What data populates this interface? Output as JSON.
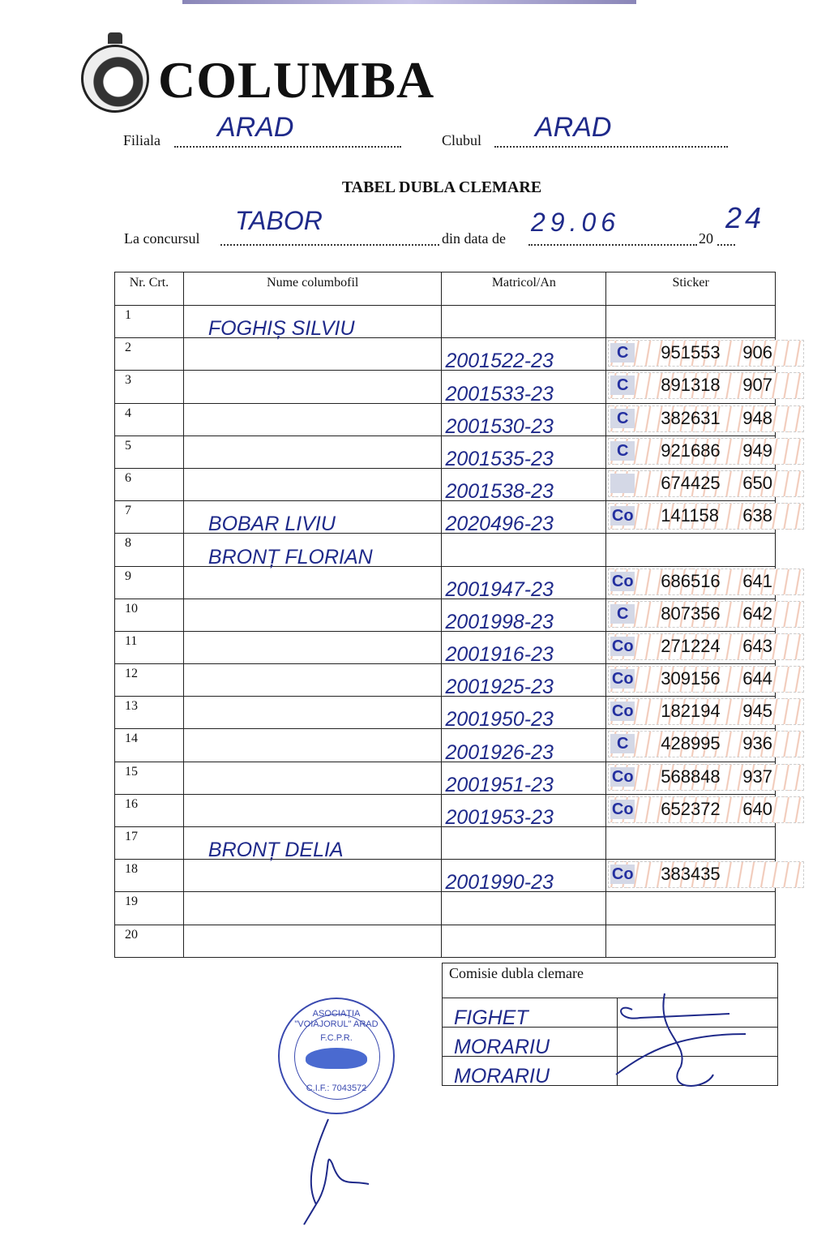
{
  "header": {
    "brand": "COLUMBA",
    "filiala_label": "Filiala",
    "filiala_value": "ARAD",
    "clubul_label": "Clubul",
    "clubul_value": "ARAD"
  },
  "title": "TABEL DUBLA CLEMARE",
  "contest": {
    "label": "La concursul",
    "value": "TABOR",
    "date_label": "din data de",
    "date_value": "29.06",
    "year_prefix": "20",
    "year_value": "24"
  },
  "table": {
    "columns": [
      "Nr. Crt.",
      "Nume columbofil",
      "Matricol/An",
      "Sticker"
    ],
    "rows": [
      {
        "nr": "1",
        "name": "FOGHIȘ SILVIU",
        "matricol": "",
        "sticker": null
      },
      {
        "nr": "2",
        "name": "",
        "matricol": "2001522-23",
        "sticker": {
          "prefix": "C",
          "number": "951553",
          "suffix": "906"
        }
      },
      {
        "nr": "3",
        "name": "",
        "matricol": "2001533-23",
        "sticker": {
          "prefix": "C",
          "number": "891318",
          "suffix": "907"
        }
      },
      {
        "nr": "4",
        "name": "",
        "matricol": "2001530-23",
        "sticker": {
          "prefix": "C",
          "number": "382631",
          "suffix": "948"
        }
      },
      {
        "nr": "5",
        "name": "",
        "matricol": "2001535-23",
        "sticker": {
          "prefix": "C",
          "number": "921686",
          "suffix": "949"
        }
      },
      {
        "nr": "6",
        "name": "",
        "matricol": "2001538-23",
        "sticker": {
          "prefix": "",
          "number": "674425",
          "suffix": "650"
        }
      },
      {
        "nr": "7",
        "name": "BOBAR LIVIU",
        "matricol": "2020496-23",
        "sticker": {
          "prefix": "Co",
          "number": "141158",
          "suffix": "638"
        }
      },
      {
        "nr": "8",
        "name": "BRONȚ FLORIAN",
        "matricol": "",
        "sticker": null
      },
      {
        "nr": "9",
        "name": "",
        "matricol": "2001947-23",
        "sticker": {
          "prefix": "Co",
          "number": "686516",
          "suffix": "641"
        }
      },
      {
        "nr": "10",
        "name": "",
        "matricol": "2001998-23",
        "sticker": {
          "prefix": "C",
          "number": "807356",
          "suffix": "642"
        }
      },
      {
        "nr": "11",
        "name": "",
        "matricol": "2001916-23",
        "sticker": {
          "prefix": "Co",
          "number": "271224",
          "suffix": "643"
        }
      },
      {
        "nr": "12",
        "name": "",
        "matricol": "2001925-23",
        "sticker": {
          "prefix": "Co",
          "number": "309156",
          "suffix": "644"
        }
      },
      {
        "nr": "13",
        "name": "",
        "matricol": "2001950-23",
        "sticker": {
          "prefix": "Co",
          "number": "182194",
          "suffix": "945"
        }
      },
      {
        "nr": "14",
        "name": "",
        "matricol": "2001926-23",
        "sticker": {
          "prefix": "C",
          "number": "428995",
          "suffix": "936"
        }
      },
      {
        "nr": "15",
        "name": "",
        "matricol": "2001951-23",
        "sticker": {
          "prefix": "Co",
          "number": "568848",
          "suffix": "937"
        }
      },
      {
        "nr": "16",
        "name": "",
        "matricol": "2001953-23",
        "sticker": {
          "prefix": "Co",
          "number": "652372",
          "suffix": "640"
        }
      },
      {
        "nr": "17",
        "name": "BRONȚ DELIA",
        "matricol": "",
        "sticker": null
      },
      {
        "nr": "18",
        "name": "",
        "matricol": "2001990-23",
        "sticker": {
          "prefix": "Co",
          "number": "383435",
          "suffix": ""
        }
      },
      {
        "nr": "19",
        "name": "",
        "matricol": "",
        "sticker": null
      },
      {
        "nr": "20",
        "name": "",
        "matricol": "",
        "sticker": null
      }
    ]
  },
  "commission": {
    "title": "Comisie dubla clemare",
    "members": [
      "FIGHET",
      "MORARIU",
      "MORARIU"
    ]
  },
  "stamp": {
    "top": "ASOCIAȚIA \"VOIAJORUL\" ARAD",
    "middle": "F.C.P.R.",
    "bottom": "C.I.F.: 7043572"
  },
  "colors": {
    "ink": "#1f2a8a",
    "stamp": "#3a4ab0",
    "sticker_prefix": "#2430a0"
  }
}
